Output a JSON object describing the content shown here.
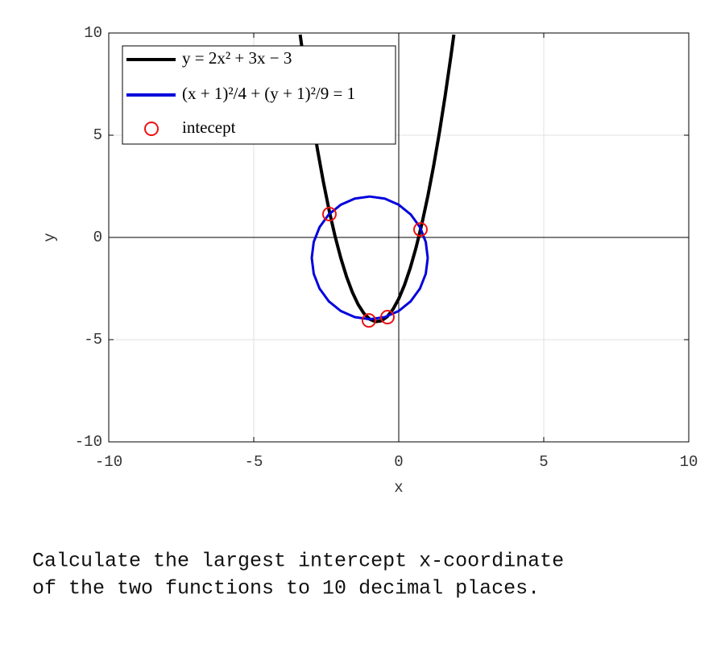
{
  "chart_data": {
    "type": "line",
    "xlabel": "x",
    "ylabel": "y",
    "xlim": [
      -10,
      10
    ],
    "ylim": [
      -10,
      10
    ],
    "xticks": [
      -10,
      -5,
      0,
      5,
      10
    ],
    "yticks": [
      -10,
      -5,
      0,
      5,
      10
    ],
    "grid": true,
    "legend": "upper left",
    "series": [
      {
        "name": "y = 2x² + 3x − 3",
        "color": "#000000",
        "type": "line",
        "x": [
          -3.4,
          -3.2,
          -3.0,
          -2.8,
          -2.6,
          -2.4,
          -2.2,
          -2.0,
          -1.8,
          -1.6,
          -1.4,
          -1.2,
          -1.0,
          -0.8,
          -0.6,
          -0.4,
          -0.2,
          0,
          0.2,
          0.4,
          0.6,
          0.8,
          1.0,
          1.2,
          1.4,
          1.6,
          1.8,
          1.9
        ],
        "values": [
          9.92,
          7.88,
          6,
          4.28,
          2.72,
          1.32,
          0.08,
          -1,
          -1.92,
          -2.68,
          -3.28,
          -3.72,
          -4,
          -4.12,
          -4.08,
          -3.88,
          -3.52,
          -3,
          -2.32,
          -1.48,
          -0.48,
          0.68,
          2,
          3.48,
          5.12,
          6.92,
          8.88,
          9.92
        ]
      },
      {
        "name": "(x + 1)²/4 + (y + 1)²/9 = 1",
        "color": "#0000dd",
        "type": "line",
        "x": [
          1,
          0.9319,
          0.7321,
          0.4142,
          0,
          -0.4824,
          -1,
          -1.5176,
          -2,
          -2.4142,
          -2.7321,
          -2.9319,
          -3,
          -2.9319,
          -2.7321,
          -2.4142,
          -2,
          -1.5176,
          -1,
          -0.4824,
          0,
          0.4142,
          0.7321,
          0.9319,
          1
        ],
        "values": [
          -1,
          -0.2235,
          0.5,
          1.1213,
          1.5981,
          1.8978,
          2,
          1.8978,
          1.5981,
          1.1213,
          0.5,
          -0.2235,
          -1,
          -1.7765,
          -2.5,
          -3.1213,
          -3.5981,
          -3.8978,
          -4,
          -3.8978,
          -3.5981,
          -3.1213,
          -2.5,
          -1.7765,
          -1
        ]
      },
      {
        "name": "intecept",
        "color": "#ee1111",
        "type": "scatter",
        "x": [
          -2.39,
          -1.03,
          -0.39,
          0.75
        ],
        "values": [
          1.14,
          -4.06,
          -3.9,
          0.39
        ]
      }
    ]
  },
  "question": [
    "Calculate the largest intercept x-coordinate",
    "of the two functions to 10 decimal places."
  ]
}
